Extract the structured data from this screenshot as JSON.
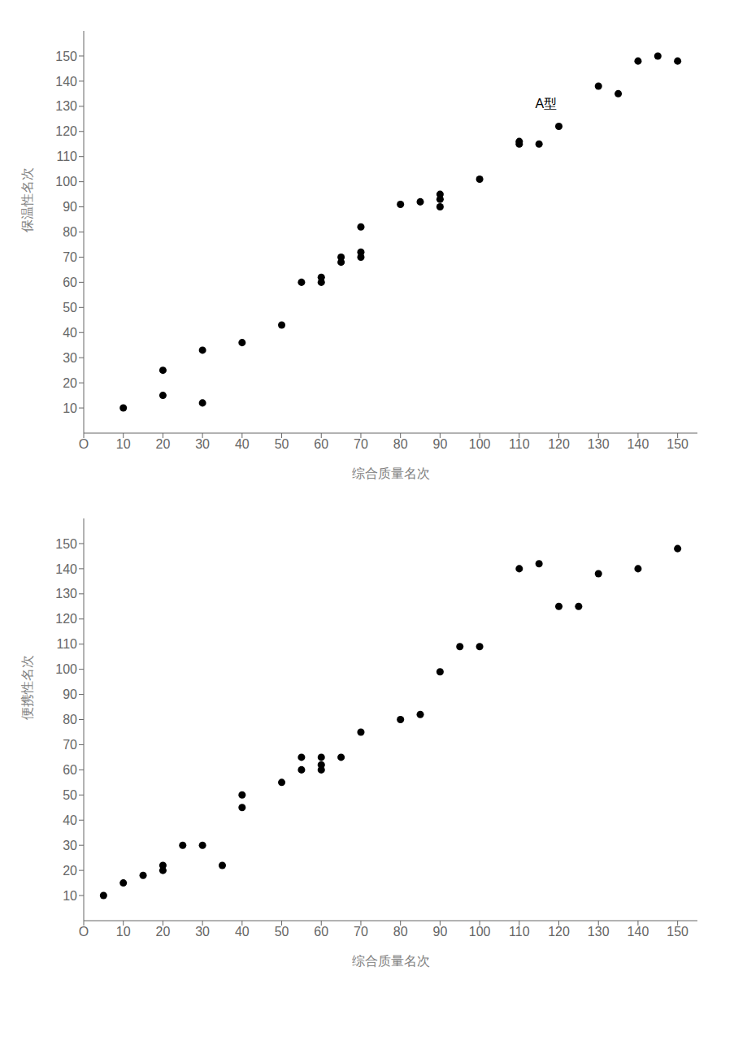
{
  "chart_data": [
    {
      "type": "scatter",
      "x_label": "综合质量名次",
      "y_label": "保温性名次",
      "x": [
        10,
        20,
        20,
        30,
        30,
        40,
        50,
        55,
        60,
        60,
        65,
        65,
        70,
        70,
        70,
        80,
        85,
        90,
        90,
        90,
        100,
        110,
        110,
        115,
        120,
        130,
        135,
        140,
        145,
        150
      ],
      "values": [
        10,
        15,
        25,
        12,
        33,
        36,
        43,
        60,
        60,
        62,
        70,
        68,
        72,
        70,
        82,
        91,
        92,
        90,
        93,
        95,
        101,
        115,
        116,
        115,
        122,
        138,
        135,
        148,
        150,
        148
      ],
      "color": "black",
      "xlim": [
        0,
        155
      ],
      "ylim": [
        0,
        160
      ],
      "xticks": [
        {
          "value": 0,
          "label": "O"
        },
        10,
        20,
        30,
        40,
        50,
        60,
        70,
        80,
        90,
        100,
        110,
        120,
        130,
        140,
        150
      ],
      "yticks": [
        10,
        20,
        30,
        40,
        50,
        60,
        70,
        80,
        90,
        100,
        110,
        120,
        130,
        140,
        150
      ],
      "grid": false,
      "annotations": [
        {
          "text": "A型",
          "x": 113,
          "y": 131
        }
      ]
    },
    {
      "type": "scatter",
      "x_label": "综合质量名次",
      "y_label": "便携性名次",
      "x": [
        5,
        10,
        15,
        20,
        20,
        25,
        30,
        35,
        40,
        40,
        50,
        55,
        55,
        60,
        60,
        60,
        65,
        70,
        80,
        85,
        90,
        95,
        100,
        110,
        115,
        120,
        125,
        130,
        140,
        150
      ],
      "values": [
        10,
        15,
        18,
        20,
        22,
        30,
        30,
        22,
        45,
        50,
        55,
        60,
        65,
        60,
        62,
        65,
        65,
        75,
        80,
        82,
        99,
        109,
        109,
        140,
        142,
        125,
        125,
        138,
        140,
        148
      ],
      "color": "black",
      "xlim": [
        0,
        155
      ],
      "ylim": [
        0,
        160
      ],
      "xticks": [
        {
          "value": 0,
          "label": "O"
        },
        10,
        20,
        30,
        40,
        50,
        60,
        70,
        80,
        90,
        100,
        110,
        120,
        130,
        140,
        150
      ],
      "yticks": [
        10,
        20,
        30,
        40,
        50,
        60,
        70,
        80,
        90,
        100,
        110,
        120,
        130,
        140,
        150
      ],
      "grid": false,
      "annotations": []
    }
  ]
}
